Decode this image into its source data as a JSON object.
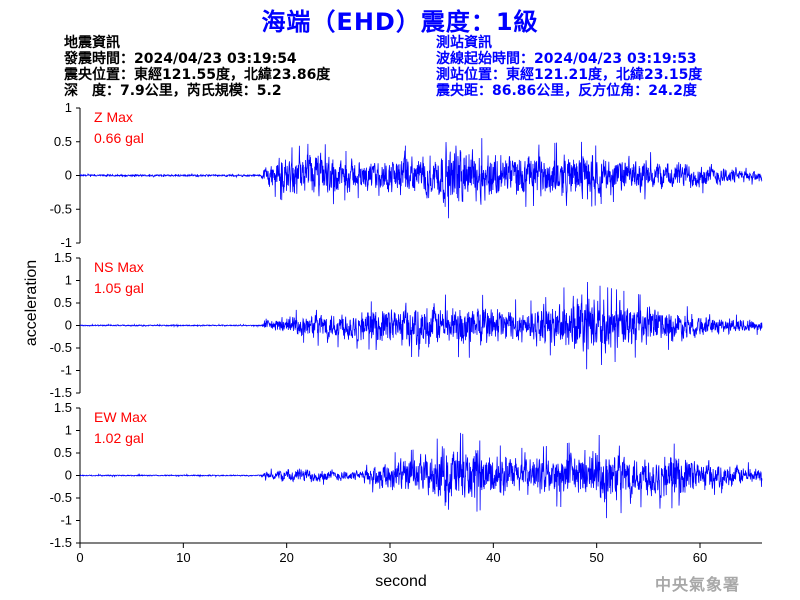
{
  "title": "海端（EHD）震度：1級",
  "quake_info": {
    "heading": "地震資訊",
    "origin_time": "發震時間：2024/04/23 03:19:54",
    "epicenter": "震央位置：東經121.55度，北緯23.86度",
    "depth_magnitude": "深　度：7.9公里，芮氏規模：5.2"
  },
  "station_info": {
    "heading": "測站資訊",
    "wave_start": "波線起始時間：2024/04/23 03:19:53",
    "station_location": "測站位置：東經121.21度，北緯23.15度",
    "distance_azimuth": "震央距：86.86公里，反方位角：24.2度"
  },
  "agency": "中央氣象署",
  "colors": {
    "title": "#0000ff",
    "trace": "#0000ff",
    "max_label": "#ff0000",
    "axis": "#000000",
    "agency": "#a8a8a8"
  },
  "chart_data": {
    "type": "line",
    "xlabel": "second",
    "ylabel": "acceleration",
    "xlim": [
      0,
      66
    ],
    "xticks": [
      "0",
      "10",
      "20",
      "30",
      "40",
      "50",
      "60"
    ],
    "panels": [
      {
        "component": "Z",
        "max_label": "Z Max",
        "max_value": "0.66 gal",
        "ylim": [
          -1,
          1
        ],
        "yticks": [
          "1",
          "0.5",
          "0",
          "-0.5",
          "-1"
        ],
        "envelope": [
          [
            0,
            0.02
          ],
          [
            17.5,
            0.02
          ],
          [
            18,
            0.25
          ],
          [
            20,
            0.4
          ],
          [
            23,
            0.5
          ],
          [
            26,
            0.35
          ],
          [
            29,
            0.3
          ],
          [
            31,
            0.45
          ],
          [
            33,
            0.42
          ],
          [
            36,
            0.66
          ],
          [
            39,
            0.55
          ],
          [
            41,
            0.5
          ],
          [
            44,
            0.45
          ],
          [
            48,
            0.52
          ],
          [
            51,
            0.4
          ],
          [
            55,
            0.35
          ],
          [
            58,
            0.3
          ],
          [
            61,
            0.25
          ],
          [
            64,
            0.15
          ],
          [
            66,
            0.12
          ]
        ]
      },
      {
        "component": "NS",
        "max_label": "NS Max",
        "max_value": "1.05 gal",
        "ylim": [
          -1.5,
          1.5
        ],
        "yticks": [
          "1.5",
          "1",
          "0.5",
          "0",
          "-0.5",
          "-1",
          "-1.5"
        ],
        "envelope": [
          [
            0,
            0.02
          ],
          [
            17.5,
            0.02
          ],
          [
            18,
            0.15
          ],
          [
            20,
            0.3
          ],
          [
            23,
            0.45
          ],
          [
            26,
            0.5
          ],
          [
            29,
            0.55
          ],
          [
            32,
            0.7
          ],
          [
            35,
            0.68
          ],
          [
            38,
            0.72
          ],
          [
            41,
            0.6
          ],
          [
            44,
            0.55
          ],
          [
            46,
            0.7
          ],
          [
            48,
            1.05
          ],
          [
            50,
            0.9
          ],
          [
            53,
            0.75
          ],
          [
            56,
            0.6
          ],
          [
            60,
            0.35
          ],
          [
            63,
            0.25
          ],
          [
            66,
            0.2
          ]
        ]
      },
      {
        "component": "EW",
        "max_label": "EW Max",
        "max_value": "1.02 gal",
        "ylim": [
          -1.5,
          1.5
        ],
        "yticks": [
          "1.5",
          "1",
          "0.5",
          "0",
          "-0.5",
          "-1",
          "-1.5"
        ],
        "envelope": [
          [
            0,
            0.02
          ],
          [
            17.5,
            0.02
          ],
          [
            18,
            0.12
          ],
          [
            20,
            0.25
          ],
          [
            24,
            0.2
          ],
          [
            27,
            0.15
          ],
          [
            28,
            0.35
          ],
          [
            30,
            0.5
          ],
          [
            33,
            0.6
          ],
          [
            36,
            1.02
          ],
          [
            39,
            0.75
          ],
          [
            42,
            0.6
          ],
          [
            45,
            0.65
          ],
          [
            48,
            0.75
          ],
          [
            51,
            0.95
          ],
          [
            54,
            0.7
          ],
          [
            57,
            0.75
          ],
          [
            60,
            0.5
          ],
          [
            63,
            0.35
          ],
          [
            66,
            0.25
          ]
        ]
      }
    ]
  }
}
